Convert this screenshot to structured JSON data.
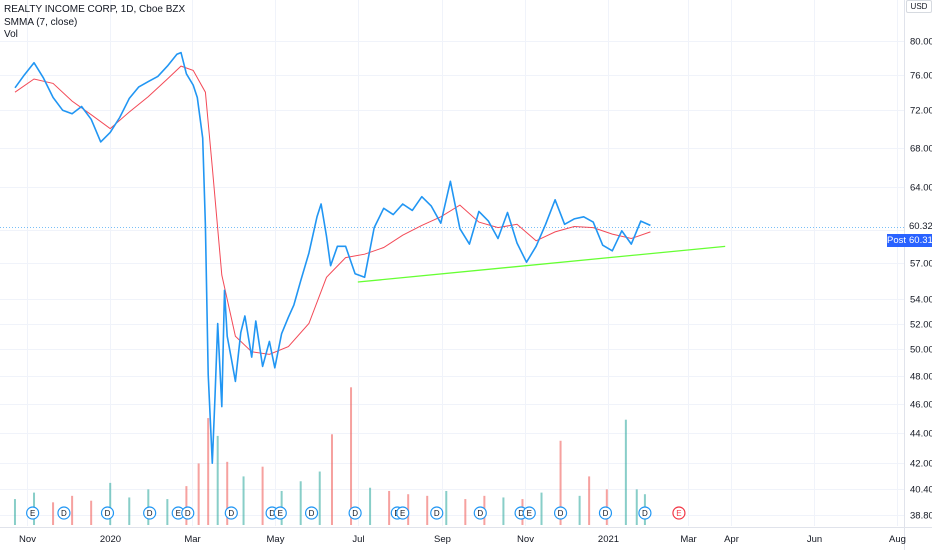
{
  "legend": {
    "title": "REALTY INCOME CORP, 1D, Cboe BZX",
    "indicator": "SMMA (7, close)",
    "volume": "Vol"
  },
  "currency": "USD",
  "price_tags": {
    "last": "60.32",
    "post_label": "Post",
    "post": "60.31"
  },
  "colors": {
    "price_line": "#2196f3",
    "smma_line": "#f23645",
    "trendline": "#66ff33",
    "volume_up": "#26a69a",
    "volume_down": "#ef5350",
    "grid": "#f0f3fa",
    "event_circle": "#2196f3",
    "event_circle_future": "#f23645"
  },
  "chart_data": {
    "type": "line",
    "title": "REALTY INCOME CORP, 1D, Cboe BZX",
    "xlabel": "",
    "ylabel": "",
    "ylim": [
      37.6,
      81.2
    ],
    "y_ticks": [
      80.0,
      76.0,
      72.0,
      68.0,
      64.0,
      60.0,
      57.0,
      54.0,
      52.0,
      50.0,
      48.0,
      46.0,
      44.0,
      42.0,
      40.4,
      38.8
    ],
    "y_tick_labels": [
      "80.00",
      "76.00",
      "72.00",
      "68.00",
      "64.00",
      "",
      "57.00",
      "54.00",
      "52.00",
      "50.00",
      "48.00",
      "46.00",
      "44.00",
      "42.00",
      "40.40",
      "38.80"
    ],
    "x_ticks": [
      "2019-11-01",
      "2020-01-01",
      "2020-03-01",
      "2020-05-01",
      "2020-07-01",
      "2020-09-01",
      "2020-11-01",
      "2021-01-01",
      "2021-03-01",
      "2021-04-01",
      "2021-06-01",
      "2021-08-01"
    ],
    "x_tick_labels": [
      "Nov",
      "2020",
      "Mar",
      "May",
      "Jul",
      "Sep",
      "Nov",
      "2021",
      "Mar",
      "Apr",
      "Jun",
      "Aug"
    ],
    "grid": true,
    "series": [
      {
        "name": "",
        "role": "price",
        "x": [
          "2019-10-23",
          "2019-10-30",
          "2019-11-06",
          "2019-11-13",
          "2019-11-20",
          "2019-11-27",
          "2019-12-04",
          "2019-12-11",
          "2019-12-18",
          "2019-12-25",
          "2020-01-01",
          "2020-01-08",
          "2020-01-15",
          "2020-01-22",
          "2020-01-29",
          "2020-02-05",
          "2020-02-12",
          "2020-02-19",
          "2020-02-22",
          "2020-02-26",
          "2020-03-02",
          "2020-03-05",
          "2020-03-09",
          "2020-03-11",
          "2020-03-13",
          "2020-03-16",
          "2020-03-18",
          "2020-03-20",
          "2020-03-23",
          "2020-03-25",
          "2020-03-27",
          "2020-03-30",
          "2020-04-02",
          "2020-04-06",
          "2020-04-09",
          "2020-04-14",
          "2020-04-17",
          "2020-04-22",
          "2020-04-27",
          "2020-05-01",
          "2020-05-06",
          "2020-05-11",
          "2020-05-15",
          "2020-05-20",
          "2020-05-26",
          "2020-06-01",
          "2020-06-04",
          "2020-06-08",
          "2020-06-11",
          "2020-06-16",
          "2020-06-22",
          "2020-06-29",
          "2020-07-06",
          "2020-07-13",
          "2020-07-20",
          "2020-07-27",
          "2020-08-03",
          "2020-08-10",
          "2020-08-17",
          "2020-08-24",
          "2020-08-31",
          "2020-09-07",
          "2020-09-14",
          "2020-09-21",
          "2020-09-28",
          "2020-10-05",
          "2020-10-12",
          "2020-10-19",
          "2020-10-26",
          "2020-11-02",
          "2020-11-09",
          "2020-11-16",
          "2020-11-23",
          "2020-11-30",
          "2020-12-07",
          "2020-12-14",
          "2020-12-21",
          "2020-12-28",
          "2021-01-04",
          "2021-01-11",
          "2021-01-18",
          "2021-01-25",
          "2021-02-01"
        ],
        "values": [
          74.5,
          76.0,
          77.4,
          75.6,
          73.4,
          72.0,
          71.6,
          72.4,
          71.0,
          68.6,
          69.6,
          71.2,
          73.3,
          74.6,
          75.2,
          75.8,
          77.0,
          78.4,
          78.6,
          76.1,
          74.8,
          73.4,
          69.0,
          60.4,
          48.1,
          42.0,
          46.5,
          52.0,
          45.8,
          54.7,
          51.0,
          49.3,
          47.6,
          51.3,
          52.6,
          49.4,
          52.2,
          48.7,
          50.6,
          48.6,
          51.2,
          52.5,
          53.5,
          55.5,
          57.9,
          61.2,
          62.4,
          59.4,
          56.8,
          58.5,
          58.5,
          56.1,
          55.8,
          60.2,
          62.0,
          61.4,
          62.4,
          61.8,
          63.1,
          62.2,
          60.6,
          64.6,
          60.1,
          58.7,
          61.7,
          60.8,
          59.2,
          61.6,
          58.8,
          57.1,
          58.5,
          60.5,
          62.8,
          60.5,
          61.0,
          61.2,
          60.7,
          58.6,
          58.1,
          59.9,
          58.7,
          60.8,
          60.4
        ]
      },
      {
        "name": "",
        "role": "smma",
        "x": [
          "2019-10-23",
          "2019-11-06",
          "2019-11-20",
          "2019-12-04",
          "2019-12-18",
          "2020-01-01",
          "2020-01-15",
          "2020-01-29",
          "2020-02-12",
          "2020-02-22",
          "2020-03-02",
          "2020-03-11",
          "2020-03-16",
          "2020-03-23",
          "2020-04-02",
          "2020-04-14",
          "2020-04-27",
          "2020-05-11",
          "2020-05-26",
          "2020-06-08",
          "2020-06-22",
          "2020-07-06",
          "2020-07-20",
          "2020-08-03",
          "2020-08-17",
          "2020-08-31",
          "2020-09-14",
          "2020-09-28",
          "2020-10-12",
          "2020-10-26",
          "2020-11-09",
          "2020-11-23",
          "2020-12-07",
          "2020-12-21",
          "2021-01-04",
          "2021-01-18",
          "2021-02-01"
        ],
        "values": [
          74.0,
          75.5,
          75.0,
          73.0,
          71.5,
          70.0,
          71.8,
          73.5,
          75.5,
          77.0,
          76.5,
          74.0,
          66.0,
          56.0,
          51.0,
          49.8,
          49.6,
          50.2,
          52.0,
          55.8,
          57.5,
          57.8,
          58.4,
          59.5,
          60.4,
          61.2,
          62.3,
          60.7,
          60.2,
          60.5,
          59.0,
          59.8,
          60.3,
          60.2,
          59.6,
          59.2,
          59.8
        ]
      }
    ],
    "volume": {
      "x": [
        "2019-10-23",
        "2019-11-06",
        "2019-11-20",
        "2019-12-04",
        "2019-12-18",
        "2020-01-01",
        "2020-01-15",
        "2020-01-29",
        "2020-02-12",
        "2020-02-26",
        "2020-03-06",
        "2020-03-13",
        "2020-03-20",
        "2020-03-27",
        "2020-04-08",
        "2020-04-22",
        "2020-05-06",
        "2020-05-20",
        "2020-06-03",
        "2020-06-12",
        "2020-06-26",
        "2020-07-10",
        "2020-07-24",
        "2020-08-07",
        "2020-08-21",
        "2020-09-04",
        "2020-09-18",
        "2020-10-02",
        "2020-10-16",
        "2020-10-30",
        "2020-11-13",
        "2020-11-27",
        "2020-12-11",
        "2020-12-18",
        "2020-12-31",
        "2021-01-14",
        "2021-01-22",
        "2021-01-28"
      ],
      "values": [
        1.6,
        2.0,
        1.4,
        1.8,
        1.5,
        2.6,
        1.7,
        2.2,
        1.6,
        2.4,
        3.8,
        6.6,
        5.5,
        3.9,
        3.0,
        3.6,
        2.1,
        2.7,
        3.3,
        5.6,
        8.5,
        2.3,
        2.1,
        1.9,
        1.8,
        2.1,
        1.6,
        1.8,
        1.7,
        1.6,
        2.0,
        5.2,
        1.8,
        3.0,
        2.2,
        6.5,
        2.2,
        1.9
      ]
    },
    "events": [
      {
        "label": "E",
        "date": "2019-11-05"
      },
      {
        "label": "D",
        "date": "2019-11-28"
      },
      {
        "label": "D",
        "date": "2019-12-30"
      },
      {
        "label": "D",
        "date": "2020-01-30"
      },
      {
        "label": "E",
        "date": "2020-02-20"
      },
      {
        "label": "D",
        "date": "2020-02-27"
      },
      {
        "label": "D",
        "date": "2020-03-30"
      },
      {
        "label": "D",
        "date": "2020-04-29"
      },
      {
        "label": "E",
        "date": "2020-05-05"
      },
      {
        "label": "D",
        "date": "2020-05-28"
      },
      {
        "label": "D",
        "date": "2020-06-29"
      },
      {
        "label": "D",
        "date": "2020-07-30"
      },
      {
        "label": "E",
        "date": "2020-08-03"
      },
      {
        "label": "D",
        "date": "2020-08-28"
      },
      {
        "label": "D",
        "date": "2020-09-29"
      },
      {
        "label": "D",
        "date": "2020-10-29"
      },
      {
        "label": "E",
        "date": "2020-11-04"
      },
      {
        "label": "D",
        "date": "2020-11-27"
      },
      {
        "label": "D",
        "date": "2020-12-30"
      },
      {
        "label": "D",
        "date": "2021-01-28"
      },
      {
        "label": "E",
        "date": "2021-02-22"
      }
    ],
    "trendline": {
      "x": [
        "2020-07-01",
        "2021-03-28"
      ],
      "y": [
        55.4,
        58.5
      ]
    }
  }
}
